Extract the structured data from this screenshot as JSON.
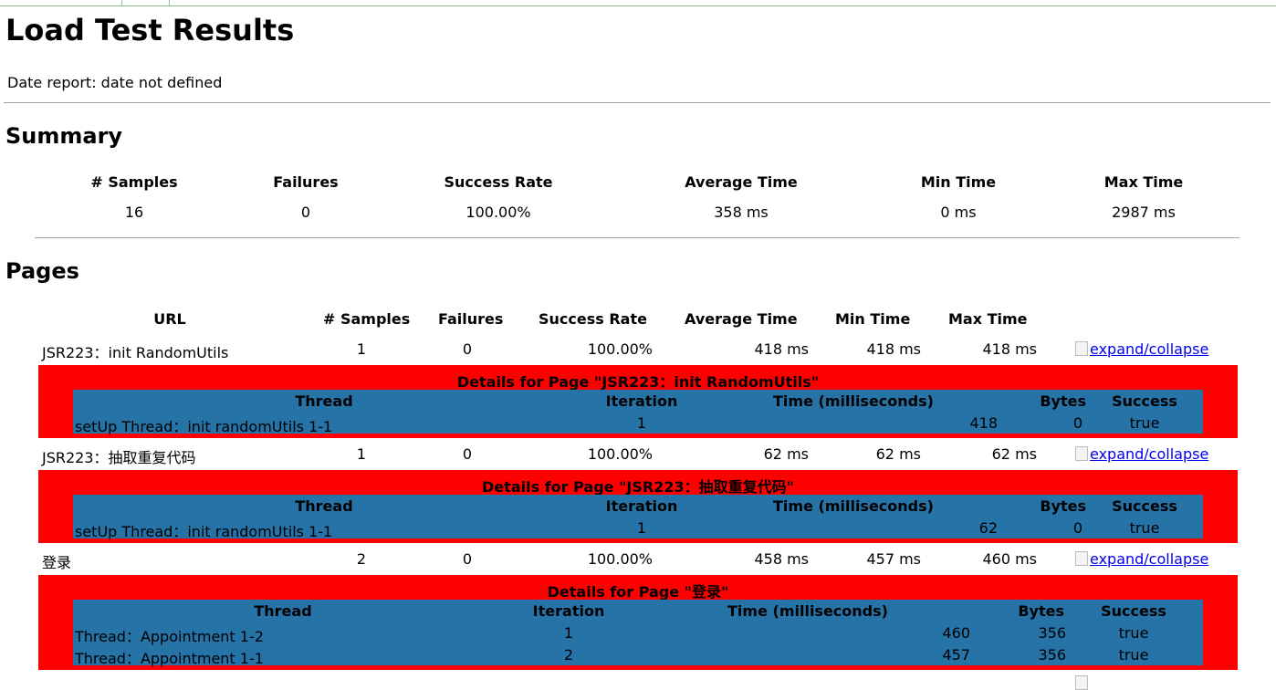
{
  "title": "Load Test Results",
  "date_report": "Date report: date not defined",
  "summary": {
    "heading": "Summary",
    "headers": [
      "# Samples",
      "Failures",
      "Success Rate",
      "Average Time",
      "Min Time",
      "Max Time"
    ],
    "values": [
      "16",
      "0",
      "100.00%",
      "358 ms",
      "0 ms",
      "2987 ms"
    ]
  },
  "pages": {
    "heading": "Pages",
    "headers": [
      "URL",
      "# Samples",
      "Failures",
      "Success Rate",
      "Average Time",
      "Min Time",
      "Max Time"
    ],
    "expand_label": "expand/collapse",
    "rows": [
      {
        "url": "JSR223：init RandomUtils",
        "samples": "1",
        "failures": "0",
        "rate": "100.00%",
        "avg": "418 ms",
        "min": "418 ms",
        "max": "418 ms",
        "details_title": "Details for Page \"JSR223：init RandomUtils\"",
        "detail_headers": [
          "Thread",
          "Iteration",
          "Time (milliseconds)",
          "Bytes",
          "Success"
        ],
        "detail_rows": [
          {
            "thread": "setUp Thread：init randomUtils 1-1",
            "iteration": "1",
            "time": "418",
            "bytes": "0",
            "success": "true"
          }
        ]
      },
      {
        "url": "JSR223：抽取重复代码",
        "samples": "1",
        "failures": "0",
        "rate": "100.00%",
        "avg": "62 ms",
        "min": "62 ms",
        "max": "62 ms",
        "details_title": "Details for Page \"JSR223：抽取重复代码\"",
        "detail_headers": [
          "Thread",
          "Iteration",
          "Time (milliseconds)",
          "Bytes",
          "Success"
        ],
        "detail_rows": [
          {
            "thread": "setUp Thread：init randomUtils 1-1",
            "iteration": "1",
            "time": "62",
            "bytes": "0",
            "success": "true"
          }
        ]
      },
      {
        "url": "登录",
        "samples": "2",
        "failures": "0",
        "rate": "100.00%",
        "avg": "458 ms",
        "min": "457 ms",
        "max": "460 ms",
        "details_title": "Details for Page \"登录\"",
        "detail_headers": [
          "Thread",
          "Iteration",
          "Time (milliseconds)",
          "Bytes",
          "Success"
        ],
        "detail_rows": [
          {
            "thread": "Thread：Appointment 1-2",
            "iteration": "1",
            "time": "460",
            "bytes": "356",
            "success": "true"
          },
          {
            "thread": "Thread：Appointment 1-1",
            "iteration": "2",
            "time": "457",
            "bytes": "356",
            "success": "true"
          }
        ]
      }
    ]
  },
  "colors": {
    "details_bg": "#ff0000",
    "details_inner_bg": "#2673a8",
    "link": "#0000ee",
    "top_border": "#8cc98c"
  }
}
